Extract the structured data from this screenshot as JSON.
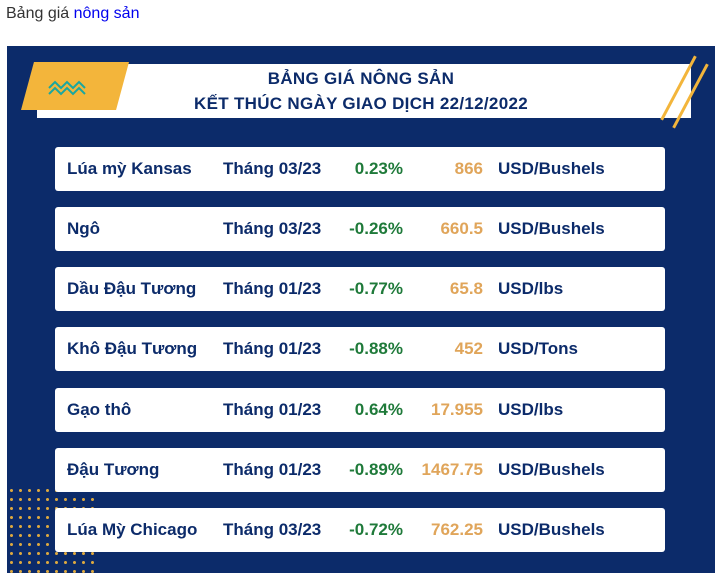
{
  "caption": {
    "prefix": "Bảng giá",
    "link": "nông sản"
  },
  "header": {
    "title": "BẢNG GIÁ NÔNG SẢN",
    "subtitle": "KẾT THÚC NGÀY GIAO DỊCH 22/12/2022"
  },
  "colors": {
    "panel": "#0c2b6a",
    "accent": "#f3b53b",
    "change": "#1f7a3a",
    "price": "#e0a55a"
  },
  "rows": [
    {
      "name": "Lúa mỳ Kansas",
      "month": "Tháng 03/23",
      "change": "0.23%",
      "price": "866",
      "unit": "USD/Bushels"
    },
    {
      "name": "Ngô",
      "month": "Tháng 03/23",
      "change": "-0.26%",
      "price": "660.5",
      "unit": "USD/Bushels"
    },
    {
      "name": "Dầu Đậu Tương",
      "month": "Tháng 01/23",
      "change": "-0.77%",
      "price": "65.8",
      "unit": "USD/lbs"
    },
    {
      "name": "Khô Đậu Tương",
      "month": "Tháng 01/23",
      "change": "-0.88%",
      "price": "452",
      "unit": "USD/Tons"
    },
    {
      "name": "Gạo thô",
      "month": "Tháng 01/23",
      "change": "0.64%",
      "price": "17.955",
      "unit": "USD/lbs"
    },
    {
      "name": "Đậu Tương",
      "month": "Tháng 01/23",
      "change": "-0.89%",
      "price": "1467.75",
      "unit": "USD/Bushels"
    },
    {
      "name": "Lúa Mỳ Chicago",
      "month": "Tháng 03/23",
      "change": "-0.72%",
      "price": "762.25",
      "unit": "USD/Bushels"
    }
  ]
}
